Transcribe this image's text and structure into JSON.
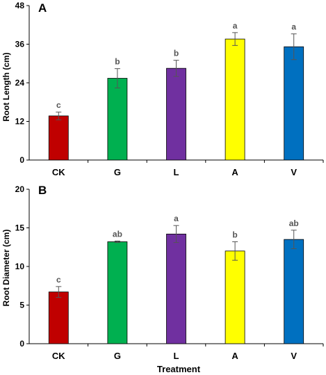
{
  "chart_data": [
    {
      "type": "bar",
      "panel_label": "A",
      "ylabel": "Root Length (cm)",
      "xlabel": "",
      "ylim": [
        0,
        48
      ],
      "yticks": [
        "0",
        "12",
        "24",
        "36",
        "48"
      ],
      "categories": [
        "CK",
        "G",
        "L",
        "A",
        "V"
      ],
      "values": [
        13.7,
        25.4,
        28.5,
        37.6,
        35.2
      ],
      "errors": [
        1.2,
        3.0,
        2.5,
        2.0,
        4.0
      ],
      "significance": [
        "c",
        "b",
        "b",
        "a",
        "a"
      ],
      "colors": [
        "#c00000",
        "#00b050",
        "#7030a0",
        "#ffff00",
        "#0070c0"
      ]
    },
    {
      "type": "bar",
      "panel_label": "B",
      "ylabel": "Root Diameter (cm)",
      "xlabel": "Treatment",
      "ylim": [
        0,
        20
      ],
      "yticks": [
        "0",
        "5",
        "10",
        "15",
        "20"
      ],
      "categories": [
        "CK",
        "G",
        "L",
        "A",
        "V"
      ],
      "values": [
        6.7,
        13.2,
        14.2,
        12.0,
        13.5
      ],
      "errors": [
        0.7,
        0.1,
        1.1,
        1.2,
        1.2
      ],
      "significance": [
        "c",
        "ab",
        "a",
        "b",
        "ab"
      ],
      "colors": [
        "#c00000",
        "#00b050",
        "#7030a0",
        "#ffff00",
        "#0070c0"
      ]
    }
  ]
}
